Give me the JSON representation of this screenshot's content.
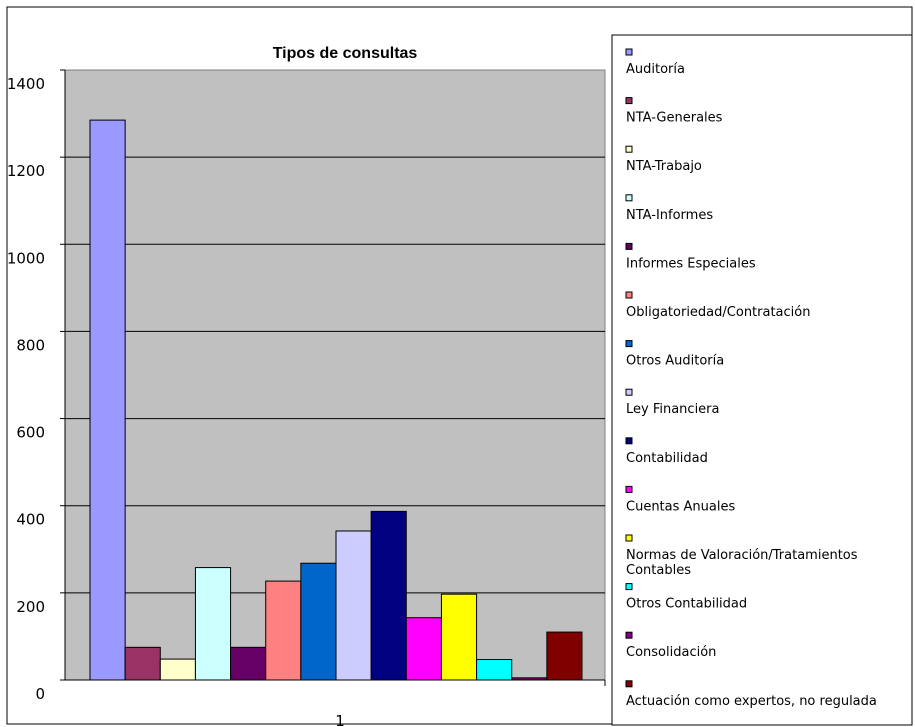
{
  "chart_data": {
    "type": "bar",
    "title": "Tipos de consultas",
    "xlabel": "",
    "ylabel": "",
    "categories": [
      "1"
    ],
    "ylim": [
      0,
      1400
    ],
    "yticks": [
      0,
      200,
      400,
      600,
      800,
      1000,
      1200,
      1400
    ],
    "grid": true,
    "legend_position": "right",
    "series": [
      {
        "name": "Auditoría",
        "values": [
          1285
        ],
        "color": "#9999ff"
      },
      {
        "name": "NTA-Generales",
        "values": [
          75
        ],
        "color": "#993366"
      },
      {
        "name": "NTA-Trabajo",
        "values": [
          48
        ],
        "color": "#ffffcc"
      },
      {
        "name": "NTA-Informes",
        "values": [
          258
        ],
        "color": "#ccffff"
      },
      {
        "name": "Informes Especiales",
        "values": [
          75
        ],
        "color": "#660066"
      },
      {
        "name": "Obligatoriedad/Contratación",
        "values": [
          227
        ],
        "color": "#ff8080"
      },
      {
        "name": "Otros Auditoría",
        "values": [
          268
        ],
        "color": "#0066cc"
      },
      {
        "name": "Ley Financiera",
        "values": [
          342
        ],
        "color": "#ccccff"
      },
      {
        "name": "Contabilidad",
        "values": [
          387
        ],
        "color": "#000080"
      },
      {
        "name": "Cuentas Anuales",
        "values": [
          143
        ],
        "color": "#ff00ff"
      },
      {
        "name": "Normas de Valoración/Tratamientos Contables",
        "values": [
          197
        ],
        "color": "#ffff00"
      },
      {
        "name": "Otros Contabilidad",
        "values": [
          47
        ],
        "color": "#00ffff"
      },
      {
        "name": "Consolidación",
        "values": [
          5
        ],
        "color": "#800080"
      },
      {
        "name": "Actuación como expertos, no regulada",
        "values": [
          110
        ],
        "color": "#800000"
      }
    ]
  }
}
